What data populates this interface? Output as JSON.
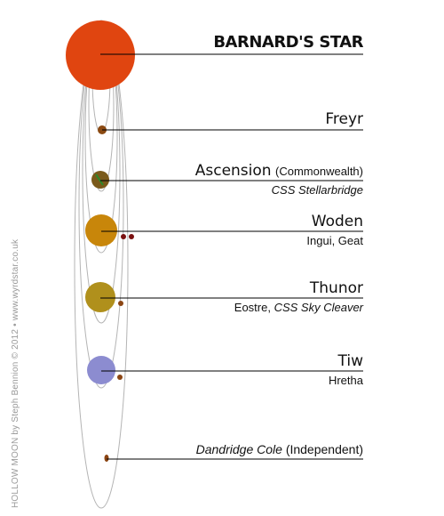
{
  "credit": "HOLLOW MOON by Steph Bennion © 2012 • www.wyrdstar.co.uk",
  "colors": {
    "star": "#e04510",
    "freyr": "#8b4a12",
    "ascension": "#7a5a1a",
    "woden": "#c8860a",
    "thunor": "#b0901c",
    "tiw": "#8c8cd0",
    "moon_dark": "#7a1010",
    "moon_brown": "#8b4513",
    "station": "#2a8a2a",
    "leader": "#000000",
    "orbit": "#b4b4b4"
  },
  "bodies": {
    "star": {
      "name": "BARNARD'S STAR"
    },
    "freyr": {
      "name": "Freyr"
    },
    "ascension": {
      "name": "Ascension",
      "qualifier": "(Commonwealth)",
      "sub_italic": "CSS Stellarbridge"
    },
    "woden": {
      "name": "Woden",
      "sub": "Ingui, Geat"
    },
    "thunor": {
      "name": "Thunor",
      "sub_prefix": "Eostre, ",
      "sub_italic": "CSS Sky Cleaver"
    },
    "tiw": {
      "name": "Tiw",
      "sub": "Hretha"
    },
    "dandridge": {
      "name_italic": "Dandridge Cole",
      "qualifier": "(Independent)"
    }
  }
}
